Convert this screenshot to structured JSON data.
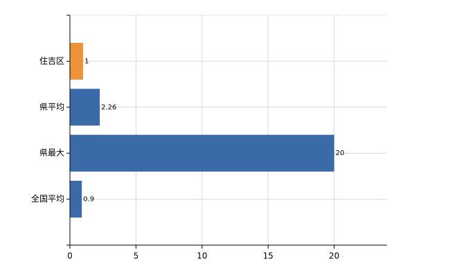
{
  "chart_data": {
    "type": "hbar",
    "categories": [
      "住吉区",
      "県平均",
      "県最大",
      "全国平均"
    ],
    "values": [
      1,
      2.26,
      20,
      0.9
    ],
    "colors": [
      "#f0923a",
      "#3a6ba8",
      "#3a6ba8",
      "#3a6ba8"
    ],
    "xlim": [
      0,
      24
    ],
    "xticks": [
      0,
      5,
      10,
      15,
      20
    ],
    "grid": true
  }
}
